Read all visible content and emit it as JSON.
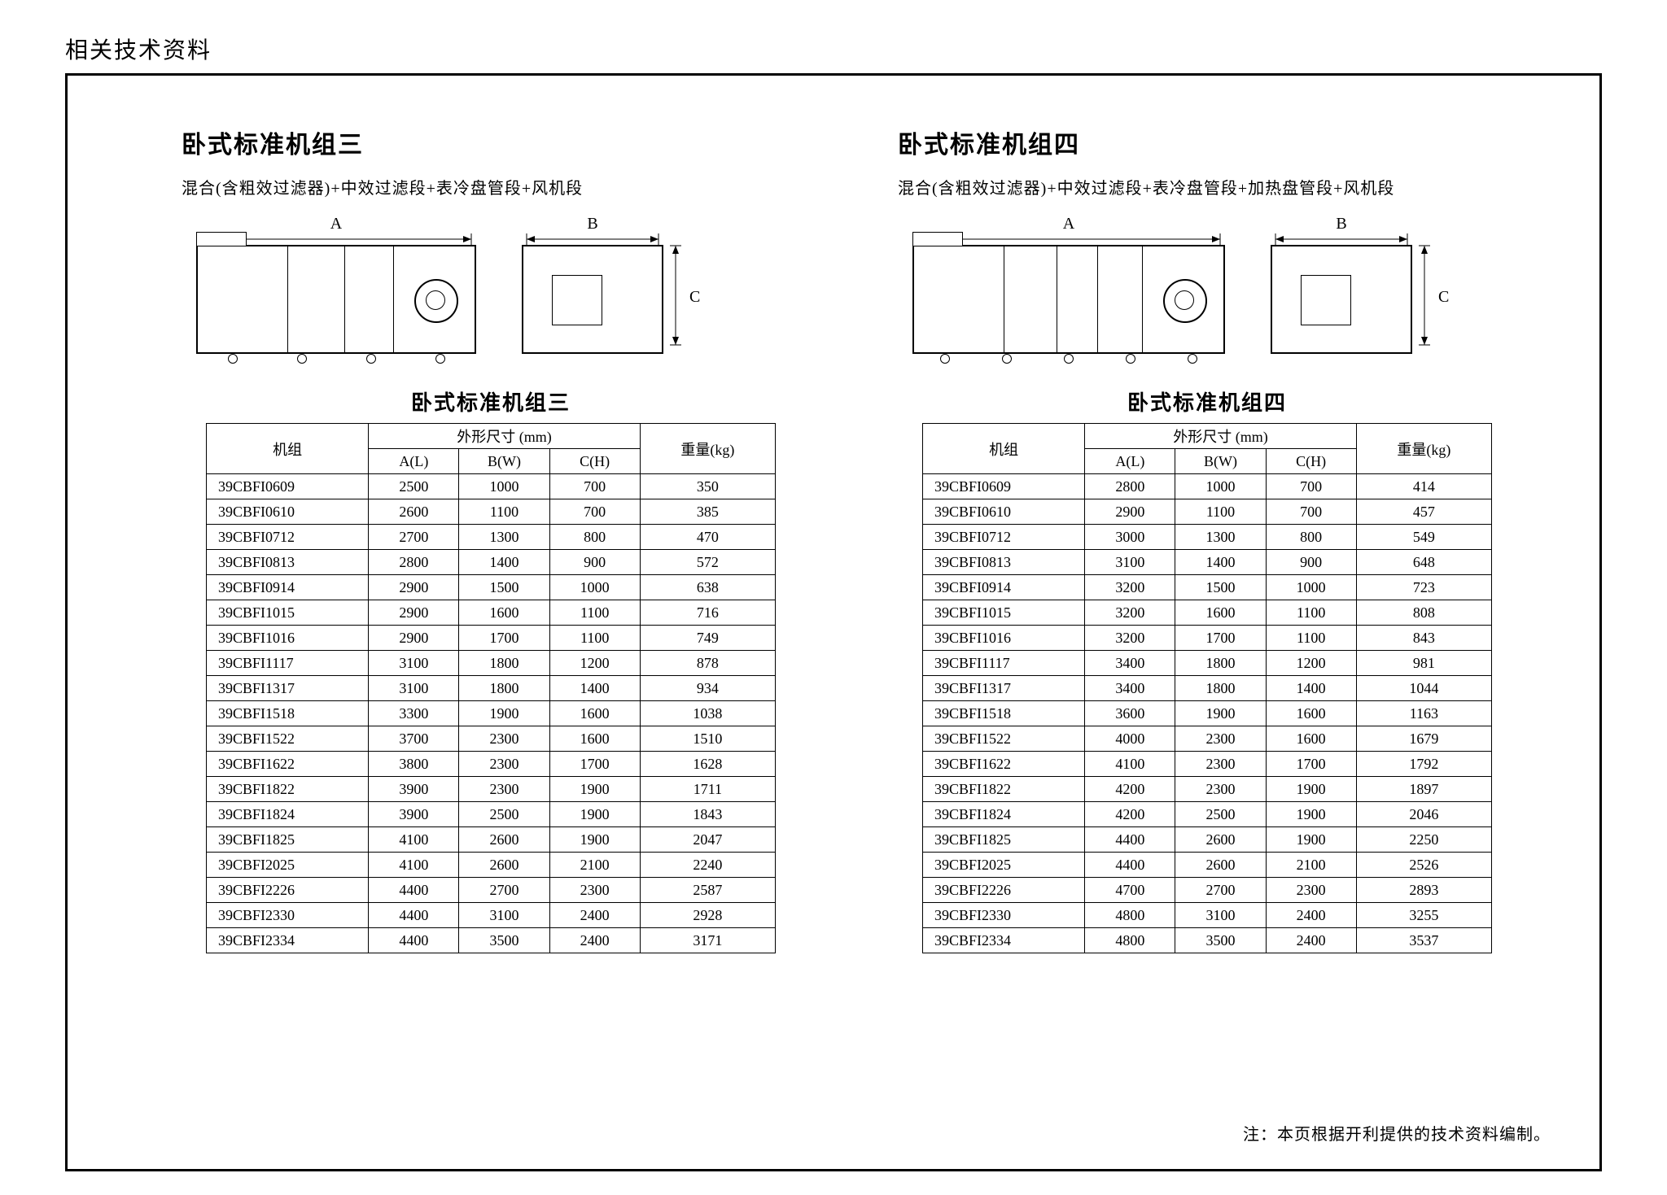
{
  "page_header": "相关技术资料",
  "footnote": "注：本页根据开利提供的技术资料编制。",
  "dim_labels": {
    "A": "A",
    "B": "B",
    "C": "C"
  },
  "header": {
    "unit": "机组",
    "dims": "外形尺寸 (mm)",
    "AL": "A(L)",
    "BW": "B(W)",
    "CH": "C(H)",
    "weight": "重量(kg)"
  },
  "left": {
    "title": "卧式标准机组三",
    "subtitle": "混合(含粗效过滤器)+中效过滤段+表冷盘管段+风机段",
    "table_title": "卧式标准机组三",
    "rows": [
      [
        "39CBFI0609",
        2500,
        1000,
        700,
        350
      ],
      [
        "39CBFI0610",
        2600,
        1100,
        700,
        385
      ],
      [
        "39CBFI0712",
        2700,
        1300,
        800,
        470
      ],
      [
        "39CBFI0813",
        2800,
        1400,
        900,
        572
      ],
      [
        "39CBFI0914",
        2900,
        1500,
        1000,
        638
      ],
      [
        "39CBFI1015",
        2900,
        1600,
        1100,
        716
      ],
      [
        "39CBFI1016",
        2900,
        1700,
        1100,
        749
      ],
      [
        "39CBFI1117",
        3100,
        1800,
        1200,
        878
      ],
      [
        "39CBFI1317",
        3100,
        1800,
        1400,
        934
      ],
      [
        "39CBFI1518",
        3300,
        1900,
        1600,
        1038
      ],
      [
        "39CBFI1522",
        3700,
        2300,
        1600,
        1510
      ],
      [
        "39CBFI1622",
        3800,
        2300,
        1700,
        1628
      ],
      [
        "39CBFI1822",
        3900,
        2300,
        1900,
        1711
      ],
      [
        "39CBFI1824",
        3900,
        2500,
        1900,
        1843
      ],
      [
        "39CBFI1825",
        4100,
        2600,
        1900,
        2047
      ],
      [
        "39CBFI2025",
        4100,
        2600,
        2100,
        2240
      ],
      [
        "39CBFI2226",
        4400,
        2700,
        2300,
        2587
      ],
      [
        "39CBFI2330",
        4400,
        3100,
        2400,
        2928
      ],
      [
        "39CBFI2334",
        4400,
        3500,
        2400,
        3171
      ]
    ]
  },
  "right": {
    "title": "卧式标准机组四",
    "subtitle": "混合(含粗效过滤器)+中效过滤段+表冷盘管段+加热盘管段+风机段",
    "table_title": "卧式标准机组四",
    "rows": [
      [
        "39CBFI0609",
        2800,
        1000,
        700,
        414
      ],
      [
        "39CBFI0610",
        2900,
        1100,
        700,
        457
      ],
      [
        "39CBFI0712",
        3000,
        1300,
        800,
        549
      ],
      [
        "39CBFI0813",
        3100,
        1400,
        900,
        648
      ],
      [
        "39CBFI0914",
        3200,
        1500,
        1000,
        723
      ],
      [
        "39CBFI1015",
        3200,
        1600,
        1100,
        808
      ],
      [
        "39CBFI1016",
        3200,
        1700,
        1100,
        843
      ],
      [
        "39CBFI1117",
        3400,
        1800,
        1200,
        981
      ],
      [
        "39CBFI1317",
        3400,
        1800,
        1400,
        1044
      ],
      [
        "39CBFI1518",
        3600,
        1900,
        1600,
        1163
      ],
      [
        "39CBFI1522",
        4000,
        2300,
        1600,
        1679
      ],
      [
        "39CBFI1622",
        4100,
        2300,
        1700,
        1792
      ],
      [
        "39CBFI1822",
        4200,
        2300,
        1900,
        1897
      ],
      [
        "39CBFI1824",
        4200,
        2500,
        1900,
        2046
      ],
      [
        "39CBFI1825",
        4400,
        2600,
        1900,
        2250
      ],
      [
        "39CBFI2025",
        4400,
        2600,
        2100,
        2526
      ],
      [
        "39CBFI2226",
        4700,
        2700,
        2300,
        2893
      ],
      [
        "39CBFI2330",
        4800,
        3100,
        2400,
        3255
      ],
      [
        "39CBFI2334",
        4800,
        3500,
        2400,
        3537
      ]
    ]
  }
}
